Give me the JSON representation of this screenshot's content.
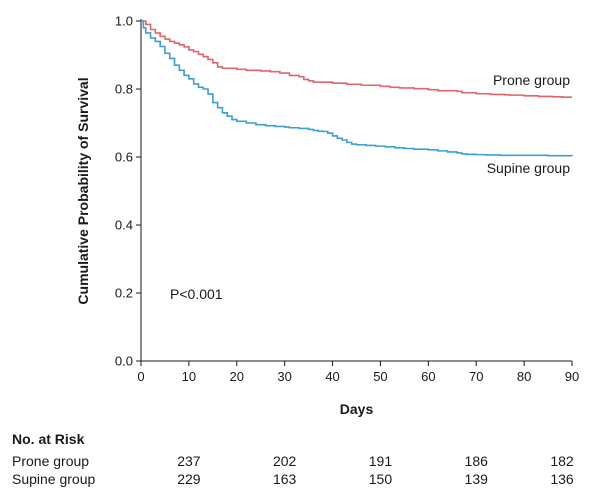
{
  "chart_data": {
    "type": "line",
    "chart_subtype": "kaplan-meier step",
    "xlabel": "Days",
    "ylabel": "Cumulative Probability of Survival",
    "xlim": [
      0,
      90
    ],
    "ylim": [
      0.0,
      1.0
    ],
    "x_ticks": [
      "0",
      "10",
      "20",
      "30",
      "40",
      "50",
      "60",
      "70",
      "80",
      "90"
    ],
    "y_ticks": [
      "0.0",
      "0.2",
      "0.4",
      "0.6",
      "0.8",
      "1.0"
    ],
    "grid": false,
    "annotation": "P<0.001",
    "series": [
      {
        "name": "Prone group",
        "color": "#e0666a",
        "x": [
          0,
          1,
          2,
          3,
          4,
          5,
          6,
          7,
          8,
          9,
          10,
          11,
          12,
          13,
          14,
          15,
          16,
          17,
          20,
          22,
          25,
          27,
          29,
          31,
          33,
          34,
          35,
          36,
          40,
          43,
          46,
          50,
          52,
          54,
          57,
          60,
          62,
          66,
          67,
          70,
          73,
          76,
          77,
          80,
          83,
          86,
          88,
          90
        ],
        "y": [
          1.0,
          0.99,
          0.975,
          0.965,
          0.955,
          0.947,
          0.94,
          0.935,
          0.93,
          0.924,
          0.915,
          0.91,
          0.902,
          0.895,
          0.887,
          0.877,
          0.865,
          0.861,
          0.858,
          0.855,
          0.853,
          0.851,
          0.847,
          0.84,
          0.836,
          0.828,
          0.824,
          0.82,
          0.817,
          0.814,
          0.811,
          0.808,
          0.805,
          0.803,
          0.801,
          0.798,
          0.795,
          0.793,
          0.789,
          0.786,
          0.784,
          0.783,
          0.782,
          0.78,
          0.778,
          0.777,
          0.776,
          0.776
        ]
      },
      {
        "name": "Supine group",
        "color": "#3a9fd4",
        "x": [
          0,
          0.5,
          1,
          2,
          3,
          4,
          5,
          6,
          7,
          8,
          9,
          10,
          11,
          12,
          13,
          14,
          15,
          16,
          17,
          18,
          19,
          20,
          22,
          24,
          26,
          28,
          30,
          31,
          33,
          35,
          36,
          37,
          38,
          39,
          40,
          41,
          42,
          43,
          44,
          45,
          47,
          49,
          51,
          53,
          55,
          57,
          60,
          62,
          64,
          66,
          67,
          68,
          70,
          72,
          75,
          80,
          85,
          90
        ],
        "y": [
          1.0,
          0.98,
          0.965,
          0.95,
          0.94,
          0.925,
          0.905,
          0.89,
          0.87,
          0.855,
          0.84,
          0.83,
          0.815,
          0.805,
          0.8,
          0.785,
          0.76,
          0.745,
          0.73,
          0.72,
          0.71,
          0.705,
          0.7,
          0.695,
          0.692,
          0.69,
          0.688,
          0.686,
          0.684,
          0.681,
          0.678,
          0.676,
          0.675,
          0.67,
          0.662,
          0.655,
          0.65,
          0.643,
          0.638,
          0.636,
          0.634,
          0.632,
          0.63,
          0.627,
          0.625,
          0.623,
          0.621,
          0.618,
          0.615,
          0.612,
          0.609,
          0.608,
          0.607,
          0.606,
          0.605,
          0.605,
          0.604,
          0.603
        ]
      }
    ]
  },
  "risk_table": {
    "title": "No. at Risk",
    "columns_x": [
      10,
      30,
      50,
      70,
      90
    ],
    "rows": [
      {
        "label": "Prone group",
        "values": [
          "237",
          "202",
          "191",
          "186",
          "182"
        ]
      },
      {
        "label": "Supine group",
        "values": [
          "229",
          "163",
          "150",
          "139",
          "136"
        ]
      }
    ]
  }
}
